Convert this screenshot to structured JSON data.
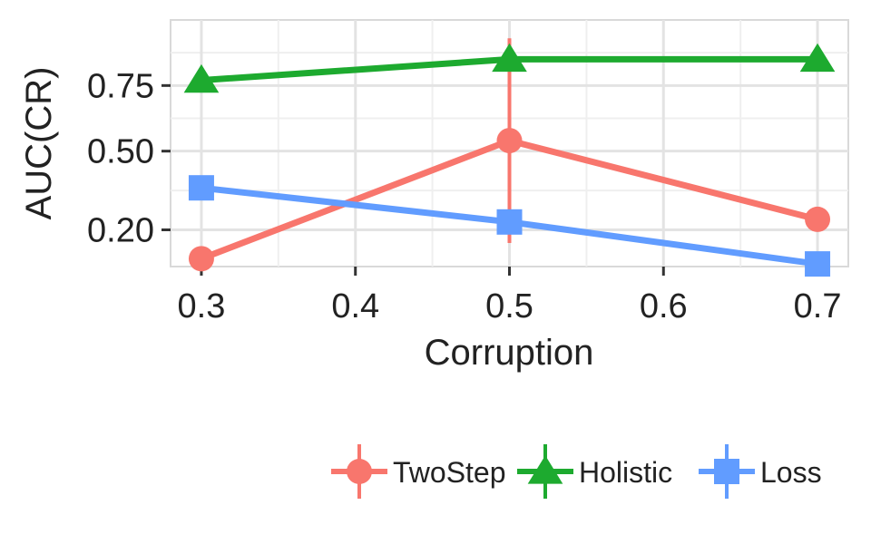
{
  "chart_data": {
    "type": "line",
    "xlabel": "Corruption",
    "ylabel": "AUC(CR)",
    "x": [
      0.3,
      0.5,
      0.7
    ],
    "xlim": [
      0.28,
      0.72
    ],
    "ylim": [
      0.06,
      1.0
    ],
    "x_ticks": [
      {
        "value": 0.3,
        "label": "0.3"
      },
      {
        "value": 0.4,
        "label": "0.4"
      },
      {
        "value": 0.5,
        "label": "0.5"
      },
      {
        "value": 0.6,
        "label": "0.6"
      },
      {
        "value": 0.7,
        "label": "0.7"
      }
    ],
    "y_ticks": [
      {
        "value": 0.2,
        "label": "0.20"
      },
      {
        "value": 0.5,
        "label": "0.50"
      },
      {
        "value": 0.75,
        "label": "0.75"
      }
    ],
    "grid": true,
    "legend_position": "bottom",
    "series": [
      {
        "name": "TwoStep",
        "color": "#F8766D",
        "marker": "circle",
        "values": [
          0.09,
          0.54,
          0.24
        ],
        "error": [
          null,
          [
            0.15,
            0.93
          ],
          null
        ]
      },
      {
        "name": "Holistic",
        "color": "#1DAA2F",
        "marker": "triangle",
        "values": [
          0.77,
          0.85,
          0.85
        ],
        "error": [
          null,
          null,
          null
        ]
      },
      {
        "name": "Loss",
        "color": "#619CFF",
        "marker": "square",
        "values": [
          0.36,
          0.23,
          0.07
        ],
        "error": [
          null,
          null,
          null
        ]
      }
    ]
  }
}
